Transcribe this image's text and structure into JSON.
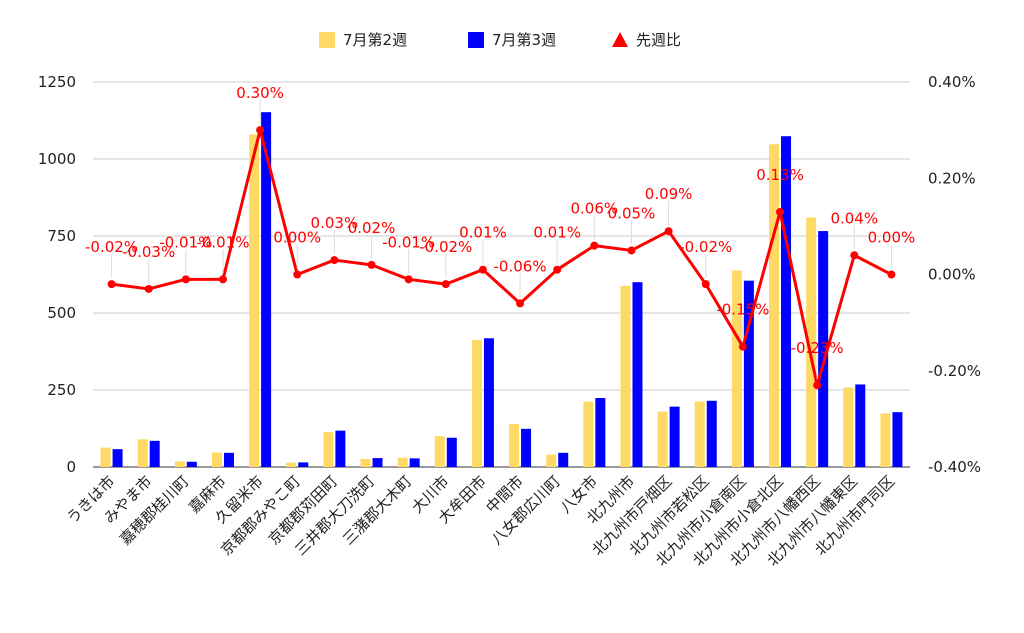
{
  "chart_data": {
    "type": "bar",
    "categories": [
      "うきは市",
      "みやま市",
      "嘉穂郡桂川町",
      "嘉麻市",
      "久留米市",
      "京都郡みやこ町",
      "京都郡苅田町",
      "三井郡大刀洗町",
      "三潴郡大木町",
      "大川市",
      "大牟田市",
      "中間市",
      "八女郡広川町",
      "八女市",
      "北九州市",
      "北九州市戸畑区",
      "北九州市若松区",
      "北九州市小倉南区",
      "北九州市小倉北区",
      "北九州市八幡西区",
      "北九州市八幡東区",
      "北九州市門司区"
    ],
    "series": [
      {
        "name": "7月第2週",
        "type": "bar",
        "axis": "left",
        "color": "#ffd966",
        "values": [
          63,
          90,
          18,
          47,
          1080,
          14,
          113,
          26,
          30,
          100,
          412,
          140,
          40,
          212,
          588,
          180,
          213,
          638,
          1048,
          810,
          258,
          174
        ]
      },
      {
        "name": "7月第3週",
        "type": "bar",
        "axis": "left",
        "color": "#0000ff",
        "values": [
          58,
          85,
          17,
          46,
          1152,
          15,
          118,
          29,
          28,
          95,
          418,
          124,
          46,
          224,
          600,
          196,
          215,
          605,
          1074,
          766,
          268,
          178
        ]
      },
      {
        "name": "先週比",
        "type": "line",
        "axis": "right",
        "color": "#ff0000",
        "values": [
          -0.0002,
          -0.0003,
          -0.0001,
          -0.0001,
          0.003,
          0.0,
          0.0003,
          0.0002,
          -0.0001,
          -0.0002,
          0.0001,
          -0.0006,
          0.0001,
          0.0006,
          0.0005,
          0.0009,
          -0.0002,
          -0.0015,
          0.0013,
          -0.0023,
          0.0004,
          0.0
        ],
        "labels": [
          "-0.02%",
          "-0.03%",
          "-0.01%",
          "-0.01%",
          "0.30%",
          "0.00%",
          "0.03%",
          "0.02%",
          "-0.01%",
          "-0.02%",
          "0.01%",
          "-0.06%",
          "0.01%",
          "0.06%",
          "0.05%",
          "0.09%",
          "-0.02%",
          "-0.15%",
          "0.13%",
          "-0.23%",
          "0.04%",
          "0.00%"
        ]
      }
    ],
    "y_left": {
      "min": 0,
      "max": 1250,
      "ticks": [
        "0",
        "250",
        "500",
        "750",
        "1000",
        "1250"
      ]
    },
    "y_right": {
      "min": -0.004,
      "max": 0.004,
      "ticks": [
        "-0.40%",
        "-0.20%",
        "0.00%",
        "0.20%",
        "0.40%"
      ]
    },
    "legend_position": "top",
    "grid": true
  }
}
